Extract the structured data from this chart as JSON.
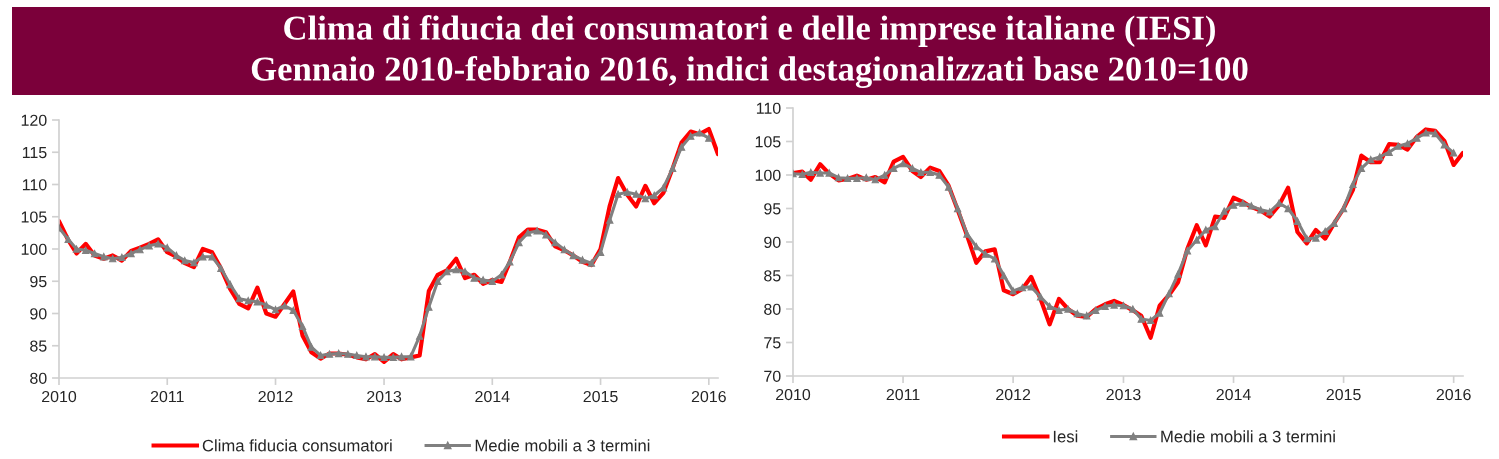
{
  "chart_data": [
    {
      "type": "line",
      "title": "Clima di fiducia dei consumatori e delle imprese italiane (IESI)",
      "subtitle": "Gennaio 2010-febbraio 2016, indici destagionalizzati base 2010=100",
      "x": [
        "2010-01",
        "2010-02",
        "2010-03",
        "2010-04",
        "2010-05",
        "2010-06",
        "2010-07",
        "2010-08",
        "2010-09",
        "2010-10",
        "2010-11",
        "2010-12",
        "2011-01",
        "2011-02",
        "2011-03",
        "2011-04",
        "2011-05",
        "2011-06",
        "2011-07",
        "2011-08",
        "2011-09",
        "2011-10",
        "2011-11",
        "2011-12",
        "2012-01",
        "2012-02",
        "2012-03",
        "2012-04",
        "2012-05",
        "2012-06",
        "2012-07",
        "2012-08",
        "2012-09",
        "2012-10",
        "2012-11",
        "2012-12",
        "2013-01",
        "2013-02",
        "2013-03",
        "2013-04",
        "2013-05",
        "2013-06",
        "2013-07",
        "2013-08",
        "2013-09",
        "2013-10",
        "2013-11",
        "2013-12",
        "2014-01",
        "2014-02",
        "2014-03",
        "2014-04",
        "2014-05",
        "2014-06",
        "2014-07",
        "2014-08",
        "2014-09",
        "2014-10",
        "2014-11",
        "2014-12",
        "2015-01",
        "2015-02",
        "2015-03",
        "2015-04",
        "2015-05",
        "2015-06",
        "2015-07",
        "2015-08",
        "2015-09",
        "2015-10",
        "2015-11",
        "2015-12",
        "2016-01",
        "2016-02"
      ],
      "series": [
        {
          "name": "Clima fiducia consumatori",
          "color": "#ff0000",
          "values": [
            104.3,
            101.4,
            99.3,
            100.8,
            99.0,
            98.5,
            99.0,
            98.2,
            99.7,
            100.2,
            100.8,
            101.5,
            99.5,
            98.8,
            97.8,
            97.2,
            100.0,
            99.5,
            97.0,
            93.8,
            91.5,
            90.8,
            94.0,
            90.0,
            89.5,
            91.5,
            93.4,
            86.6,
            84.0,
            83.0,
            83.8,
            83.8,
            83.6,
            83.2,
            82.9,
            83.7,
            82.5,
            83.7,
            82.9,
            83.2,
            83.5,
            93.5,
            96.0,
            96.7,
            98.5,
            95.5,
            96.0,
            94.6,
            95.2,
            94.9,
            98.0,
            101.8,
            103.0,
            103.0,
            102.6,
            100.4,
            99.8,
            99.0,
            98.0,
            97.5,
            100.0,
            106.7,
            111.0,
            108.4,
            106.6,
            109.8,
            107.1,
            108.7,
            112.5,
            116.5,
            118.2,
            117.8,
            118.6,
            114.7
          ]
        },
        {
          "name": "Medie mobili a 3 termini",
          "color": "#808080",
          "marker": "triangle",
          "values": [
            103.3,
            101.5,
            100.0,
            99.8,
            99.3,
            98.8,
            98.5,
            98.7,
            99.3,
            99.9,
            100.5,
            100.8,
            100.2,
            99.0,
            98.2,
            97.9,
            98.8,
            98.8,
            97.0,
            94.5,
            92.3,
            92.0,
            91.8,
            91.3,
            90.6,
            91.2,
            90.5,
            88.0,
            84.8,
            83.5,
            83.7,
            83.8,
            83.7,
            83.5,
            83.3,
            83.3,
            83.2,
            83.2,
            83.3,
            83.3,
            86.5,
            91.0,
            95.0,
            96.5,
            96.8,
            96.5,
            95.5,
            95.2,
            95.0,
            96.0,
            98.0,
            101.0,
            102.5,
            102.8,
            102.2,
            101.0,
            99.9,
            99.0,
            98.3,
            97.8,
            99.5,
            104.5,
            108.5,
            108.8,
            108.5,
            107.8,
            108.3,
            109.5,
            112.5,
            115.8,
            117.5,
            118.0,
            117.2,
            null
          ]
        }
      ],
      "xlim": [
        "2010-01",
        "2016-02"
      ],
      "xticks": [
        "2010",
        "2011",
        "2012",
        "2013",
        "2014",
        "2015",
        "2016"
      ],
      "ylim": [
        80,
        120
      ],
      "yticks": [
        80,
        85,
        90,
        95,
        100,
        105,
        110,
        115,
        120
      ],
      "grid": false,
      "legend": "bottom",
      "line_style": "solid"
    },
    {
      "type": "line",
      "x": [
        "2010-01",
        "2010-02",
        "2010-03",
        "2010-04",
        "2010-05",
        "2010-06",
        "2010-07",
        "2010-08",
        "2010-09",
        "2010-10",
        "2010-11",
        "2010-12",
        "2011-01",
        "2011-02",
        "2011-03",
        "2011-04",
        "2011-05",
        "2011-06",
        "2011-07",
        "2011-08",
        "2011-09",
        "2011-10",
        "2011-11",
        "2011-12",
        "2012-01",
        "2012-02",
        "2012-03",
        "2012-04",
        "2012-05",
        "2012-06",
        "2012-07",
        "2012-08",
        "2012-09",
        "2012-10",
        "2012-11",
        "2012-12",
        "2013-01",
        "2013-02",
        "2013-03",
        "2013-04",
        "2013-05",
        "2013-06",
        "2013-07",
        "2013-08",
        "2013-09",
        "2013-10",
        "2013-11",
        "2013-12",
        "2014-01",
        "2014-02",
        "2014-03",
        "2014-04",
        "2014-05",
        "2014-06",
        "2014-07",
        "2014-08",
        "2014-09",
        "2014-10",
        "2014-11",
        "2014-12",
        "2015-01",
        "2015-02",
        "2015-03",
        "2015-04",
        "2015-05",
        "2015-06",
        "2015-07",
        "2015-08",
        "2015-09",
        "2015-10",
        "2015-11",
        "2015-12",
        "2016-01",
        "2016-02"
      ],
      "series": [
        {
          "name": "Iesi",
          "color": "#ff0000",
          "values": [
            100.3,
            100.5,
            99.3,
            101.6,
            100.2,
            99.2,
            99.4,
            99.9,
            99.3,
            99.7,
            98.9,
            102.0,
            102.7,
            100.6,
            99.7,
            101.1,
            100.6,
            98.4,
            94.8,
            91.0,
            86.9,
            88.6,
            88.9,
            82.8,
            82.2,
            83.0,
            84.8,
            81.5,
            77.7,
            81.5,
            80.0,
            79.0,
            78.8,
            80.0,
            80.7,
            81.2,
            80.6,
            79.8,
            79.0,
            75.7,
            80.5,
            82.1,
            84.0,
            89.0,
            92.5,
            89.5,
            93.8,
            93.6,
            96.6,
            96.0,
            95.2,
            94.7,
            93.8,
            95.5,
            98.1,
            91.5,
            89.8,
            91.8,
            90.5,
            92.8,
            95.0,
            97.8,
            102.9,
            101.9,
            101.9,
            104.6,
            104.5,
            103.8,
            105.7,
            106.8,
            106.6,
            105.1,
            101.5,
            103.3
          ]
        },
        {
          "name": "Medie mobili a 3 termini",
          "color": "#808080",
          "marker": "triangle",
          "values": [
            100.2,
            100.1,
            100.4,
            100.3,
            100.3,
            99.6,
            99.5,
            99.5,
            99.6,
            99.3,
            100.0,
            101.0,
            101.7,
            101.0,
            100.4,
            100.4,
            100.0,
            98.2,
            95.0,
            91.2,
            89.3,
            88.2,
            87.5,
            85.0,
            82.7,
            83.2,
            83.3,
            81.8,
            80.4,
            79.8,
            80.0,
            79.3,
            79.0,
            79.8,
            80.4,
            80.6,
            80.5,
            80.0,
            78.5,
            78.3,
            79.4,
            82.3,
            85.2,
            88.7,
            90.3,
            91.8,
            92.3,
            94.6,
            95.5,
            95.8,
            95.4,
            94.8,
            94.5,
            95.8,
            95.0,
            93.1,
            90.5,
            90.6,
            91.6,
            92.8,
            95.0,
            98.6,
            101.0,
            102.3,
            102.7,
            103.4,
            104.3,
            104.7,
            105.5,
            106.3,
            106.2,
            104.5,
            103.3,
            null
          ]
        }
      ],
      "xlim": [
        "2010-01",
        "2016-02"
      ],
      "xticks": [
        "2010",
        "2011",
        "2012",
        "2013",
        "2014",
        "2015",
        "2016"
      ],
      "ylim": [
        70,
        110
      ],
      "yticks": [
        70,
        75,
        80,
        85,
        90,
        95,
        100,
        105,
        110
      ],
      "grid": false,
      "legend": "bottom",
      "line_style": "solid"
    }
  ]
}
